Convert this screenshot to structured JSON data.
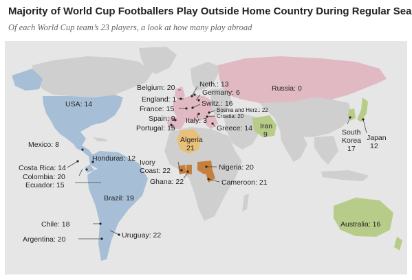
{
  "title": "Majority of World Cup Footballers Play Outside Home Country During Regular Season",
  "subtitle": "Of each World Cup team’s 23 players, a look at how many play abroad",
  "colors": {
    "ocean": "#e6e6e6",
    "land": "#cfcfcf",
    "americas": "#a7bfd6",
    "europe": "#e0b9c3",
    "africa": "#c77f3d",
    "algeria": "#e8c07a",
    "asia": "#b8cc8a",
    "oceania": "#b8cc8a"
  },
  "labels": {
    "usa": "USA: 14",
    "mexico": "Mexico: 8",
    "honduras": "Honduras: 12",
    "costa_rica": "Costa Rica: 14",
    "colombia": "Colombia: 20",
    "ecuador": "Ecuador: 15",
    "brazil": "Brazil: 19",
    "chile": "Chile: 18",
    "argentina": "Argentina: 20",
    "uruguay": "Uruguay: 22",
    "belgium": "Belgium: 20",
    "england": "England: 1",
    "france": "France: 15",
    "spain": "Spain: 9",
    "portugal": "Portugal: 15",
    "netherlands": "Neth.: 13",
    "germany": "Germany: 6",
    "switzerland": "Switz.: 16",
    "italy": "Italy: 3",
    "bosnia": "Bosnia and Herz.: 22",
    "croatia": "Croatia: 20",
    "greece": "Greece: 14",
    "russia": "Russia: 0",
    "iran_name": "Iran",
    "iran_value": "9",
    "algeria_name": "Algeria",
    "algeria_value": "21",
    "nigeria": "Nigeria: 20",
    "ivory_coast_line1": "Ivory",
    "ivory_coast_line2": "Coast: 22",
    "ghana": "Ghana: 22",
    "cameroon": "Cameroon: 21",
    "south_korea_line1": "South",
    "south_korea_line2": "Korea",
    "south_korea_value": "17",
    "japan_name": "Japan",
    "japan_value": "12",
    "australia": "Australia: 16"
  }
}
